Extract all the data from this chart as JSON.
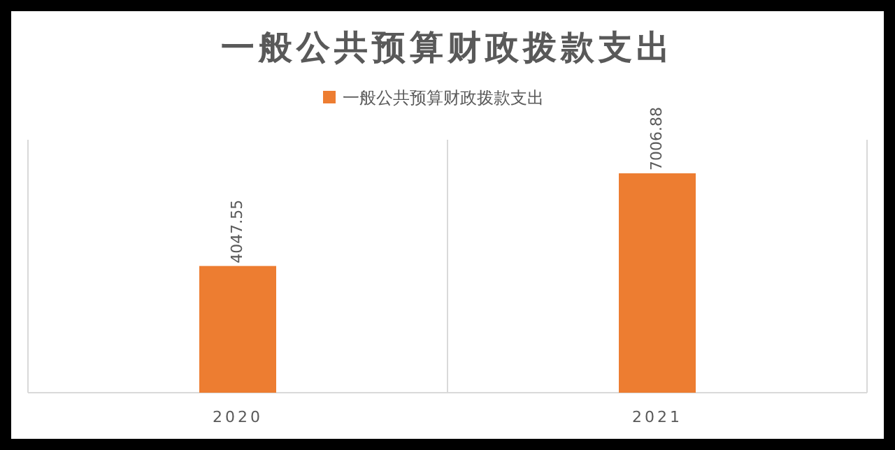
{
  "chart_data": {
    "type": "bar",
    "title": "一般公共预算财政拨款支出",
    "categories": [
      "2020",
      "2021"
    ],
    "series": [
      {
        "name": "一般公共预算财政拨款支出",
        "color": "#ed7d31",
        "values": [
          4047.55,
          7006.88
        ]
      }
    ],
    "data_labels": true,
    "legend": "top",
    "grid": "x"
  }
}
